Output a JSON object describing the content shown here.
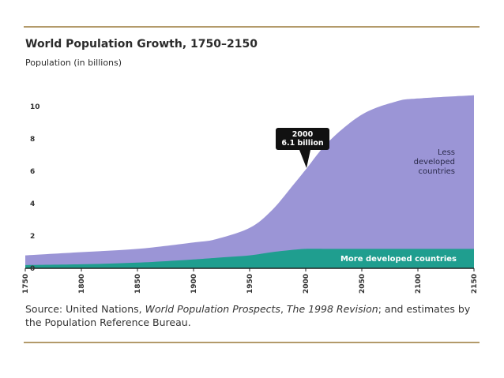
{
  "chart_data": {
    "type": "area",
    "title": "World Population Growth, 1750–2150",
    "ylabel": "Population (in billions)",
    "xlabel": "",
    "x_ticks": [
      1750,
      1800,
      1850,
      1900,
      1950,
      2000,
      2050,
      2100,
      2150
    ],
    "y_ticks": [
      0,
      2,
      4,
      6,
      8,
      10
    ],
    "xlim": [
      1750,
      2150
    ],
    "ylim": [
      0,
      11
    ],
    "grid": false,
    "stacked": true,
    "x": [
      1750,
      1800,
      1850,
      1900,
      1920,
      1950,
      1970,
      1990,
      2000,
      2020,
      2050,
      2080,
      2100,
      2150
    ],
    "series": [
      {
        "name": "More developed countries",
        "color": "#1f9e8f",
        "values": [
          0.2,
          0.25,
          0.35,
          0.55,
          0.65,
          0.8,
          1.0,
          1.15,
          1.2,
          1.2,
          1.2,
          1.2,
          1.2,
          1.2
        ]
      },
      {
        "name": "Less developed countries",
        "color": "#9b95d6",
        "values": [
          0.6,
          0.75,
          0.85,
          1.05,
          1.15,
          1.7,
          2.6,
          4.1,
          4.9,
          6.6,
          8.3,
          9.1,
          9.3,
          9.5
        ]
      }
    ],
    "series_labels": {
      "less": [
        "Less",
        "developed",
        "countries"
      ],
      "more": "More developed countries"
    },
    "annotation": {
      "x": 2000,
      "y": 6.1,
      "lines": [
        "2000",
        "6.1 billion"
      ]
    }
  },
  "source": {
    "prefix": "Source: United Nations, ",
    "italic1": "World Population Prospects",
    "mid": ", ",
    "italic2": "The 1998 Revision",
    "suffix": "; and estimates by the Population Reference Bureau."
  }
}
